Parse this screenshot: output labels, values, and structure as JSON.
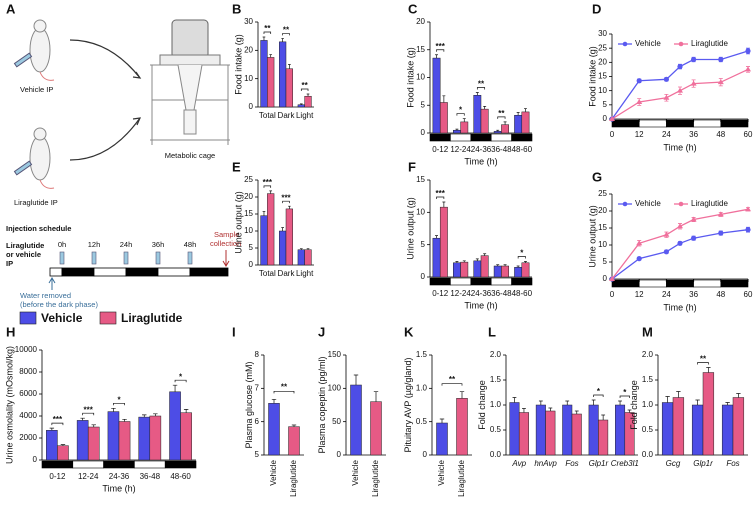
{
  "diagram": {
    "panel": "A",
    "vehicle_label": "Vehicle IP",
    "liraglutide_label": "Liraglutide IP",
    "cage_label": "Metabolic cage",
    "schedule_title": "Injection schedule",
    "injection_label": [
      "Liraglutide",
      "or vehicle",
      "IP"
    ],
    "times": [
      "0h",
      "12h",
      "24h",
      "36h",
      "48h"
    ],
    "sample_label": [
      "Sample",
      "collection"
    ],
    "water_label": [
      "Water removed",
      "(before the dark phase)"
    ]
  },
  "legend": [
    {
      "name": "Vehicle",
      "color": "#4d4de6"
    },
    {
      "name": "Liraglutide",
      "color": "#e65a85"
    }
  ],
  "chart_data": [
    {
      "panel": "B",
      "type": "bar",
      "y_label": "Food intake (g)",
      "categories": [
        "Total",
        "Dark",
        "Light"
      ],
      "series": [
        {
          "color": "#4d4de6",
          "values": [
            23.5,
            23,
            0.8
          ],
          "errors": [
            1.2,
            1.2,
            0.3
          ]
        },
        {
          "color": "#e65a85",
          "values": [
            17.5,
            13.5,
            3.8
          ],
          "errors": [
            1,
            1.5,
            0.8
          ]
        }
      ],
      "significance": [
        "**",
        "**",
        "**"
      ],
      "ylim": [
        0,
        30
      ],
      "yticks": [
        0,
        10,
        20,
        30
      ]
    },
    {
      "panel": "C",
      "type": "bar",
      "y_label": "Food intake (g)",
      "x_label": "Time (h)",
      "light_dark_bar": true,
      "categories": [
        "0-12",
        "12-24",
        "24-36",
        "36-48",
        "48-60"
      ],
      "series": [
        {
          "color": "#4d4de6",
          "values": [
            13.5,
            0.5,
            6.8,
            0.3,
            3.2
          ],
          "errors": [
            0.6,
            0.2,
            0.5,
            0.2,
            0.5
          ]
        },
        {
          "color": "#e65a85",
          "values": [
            5.5,
            2,
            4.3,
            1.5,
            3.8
          ],
          "errors": [
            1.2,
            0.6,
            0.5,
            0.5,
            0.6
          ]
        }
      ],
      "significance": [
        "***",
        "*",
        "**",
        "**",
        null
      ],
      "ylim": [
        0,
        20
      ],
      "yticks": [
        0,
        5,
        10,
        15,
        20
      ]
    },
    {
      "panel": "D",
      "type": "line",
      "y_label": "Food intake (g)",
      "x_label": "Time (h)",
      "light_dark_bar": true,
      "x": [
        0,
        12,
        24,
        30,
        36,
        48,
        60
      ],
      "series": [
        {
          "name": "Vehicle",
          "color": "#5a5af0",
          "values": [
            0,
            13.5,
            14,
            18.5,
            21,
            21,
            24
          ],
          "errors": [
            0,
            0.6,
            0.6,
            0.8,
            0.8,
            0.8,
            1
          ]
        },
        {
          "name": "Liraglutide",
          "color": "#f0709c",
          "values": [
            0,
            6,
            7.5,
            10,
            12.5,
            13,
            17.5
          ],
          "errors": [
            0,
            1.2,
            1.2,
            1.3,
            1.3,
            1.3,
            1
          ]
        }
      ],
      "xlim": [
        0,
        60
      ],
      "xticks": [
        0,
        12,
        24,
        36,
        48,
        60
      ],
      "ylim": [
        0,
        30
      ],
      "yticks": [
        0,
        5,
        10,
        15,
        20,
        25,
        30
      ]
    },
    {
      "panel": "E",
      "type": "bar",
      "y_label": "Urine output (g)",
      "categories": [
        "Total",
        "Dark",
        "Light"
      ],
      "series": [
        {
          "color": "#4d4de6",
          "values": [
            14.5,
            10,
            4.5
          ],
          "errors": [
            1.2,
            1,
            0.3
          ]
        },
        {
          "color": "#e65a85",
          "values": [
            21,
            16.5,
            4.5
          ],
          "errors": [
            0.8,
            0.8,
            0.3
          ]
        }
      ],
      "significance": [
        "***",
        "***",
        null
      ],
      "ylim": [
        0,
        25
      ],
      "yticks": [
        0,
        5,
        10,
        15,
        20,
        25
      ]
    },
    {
      "panel": "F",
      "type": "bar",
      "y_label": "Urine output (g)",
      "x_label": "Time (h)",
      "light_dark_bar": true,
      "categories": [
        "0-12",
        "12-24",
        "24-36",
        "36-48",
        "48-60"
      ],
      "series": [
        {
          "color": "#4d4de6",
          "values": [
            6,
            2.2,
            2.5,
            1.7,
            1.5
          ],
          "errors": [
            0.4,
            0.2,
            0.3,
            0.2,
            0.2
          ]
        },
        {
          "color": "#e65a85",
          "values": [
            10.8,
            2.3,
            3.3,
            1.7,
            2.2
          ],
          "errors": [
            0.8,
            0.2,
            0.3,
            0.2,
            0.2
          ]
        }
      ],
      "significance": [
        "***",
        null,
        null,
        null,
        "*"
      ],
      "ylim": [
        0,
        15
      ],
      "yticks": [
        0,
        5,
        10,
        15
      ]
    },
    {
      "panel": "G",
      "type": "line",
      "y_label": "Urine output (g)",
      "x_label": "Time (h)",
      "light_dark_bar": true,
      "x": [
        0,
        12,
        24,
        30,
        36,
        48,
        60
      ],
      "series": [
        {
          "name": "Vehicle",
          "color": "#5a5af0",
          "values": [
            0,
            6,
            8,
            10.5,
            12,
            13.5,
            14.5
          ],
          "errors": [
            0,
            0.4,
            0.5,
            0.5,
            0.6,
            0.6,
            0.7
          ]
        },
        {
          "name": "Liraglutide",
          "color": "#f0709c",
          "values": [
            0,
            10.5,
            13,
            15.5,
            17.5,
            19,
            20.5
          ],
          "errors": [
            0,
            0.8,
            0.8,
            0.8,
            0.6,
            0.6,
            0.5
          ]
        }
      ],
      "xlim": [
        0,
        60
      ],
      "xticks": [
        0,
        12,
        24,
        36,
        48,
        60
      ],
      "ylim": [
        0,
        25
      ],
      "yticks": [
        0,
        5,
        10,
        15,
        20,
        25
      ]
    },
    {
      "panel": "H",
      "type": "bar",
      "y_label": "Urine osmolality (mOsmol/kg)",
      "x_label": "Time (h)",
      "light_dark_bar": true,
      "categories": [
        "0-12",
        "12-24",
        "24-36",
        "36-48",
        "48-60"
      ],
      "series": [
        {
          "color": "#4d4de6",
          "values": [
            2700,
            3600,
            4400,
            3900,
            6200
          ],
          "errors": [
            200,
            200,
            300,
            200,
            600
          ]
        },
        {
          "color": "#e65a85",
          "values": [
            1300,
            3000,
            3500,
            4000,
            4300
          ],
          "errors": [
            100,
            200,
            200,
            200,
            300
          ]
        }
      ],
      "significance": [
        "***",
        "***",
        "*",
        null,
        "*"
      ],
      "ylim": [
        0,
        10000
      ],
      "yticks": [
        0,
        2000,
        4000,
        6000,
        8000,
        10000
      ]
    },
    {
      "panel": "I",
      "type": "bar",
      "y_label": "Plasma glucose (mM)",
      "rotate_categories": true,
      "categories": [
        "Vehicle",
        "Liraglutide"
      ],
      "values": [
        6.55,
        5.85
      ],
      "errors": [
        0.12,
        0.05
      ],
      "colors": [
        "#4d4de6",
        "#e65a85"
      ],
      "significance": "**",
      "ylim": [
        5,
        8
      ],
      "yticks": [
        5,
        6,
        7,
        8
      ]
    },
    {
      "panel": "J",
      "type": "bar",
      "y_label": "Plasma copeptin (pg/ml)",
      "rotate_categories": true,
      "categories": [
        "Vehicle",
        "Liraglutide"
      ],
      "values": [
        105,
        80
      ],
      "errors": [
        15,
        15
      ],
      "colors": [
        "#4d4de6",
        "#e65a85"
      ],
      "ylim": [
        0,
        150
      ],
      "yticks": [
        0,
        50,
        100,
        150
      ]
    },
    {
      "panel": "K",
      "type": "bar",
      "y_label": "Pituitary AVP (µg/gland)",
      "rotate_categories": true,
      "categories": [
        "Vehicle",
        "Liraglutide"
      ],
      "values": [
        0.48,
        0.85
      ],
      "errors": [
        0.06,
        0.1
      ],
      "colors": [
        "#4d4de6",
        "#e65a85"
      ],
      "significance": "**",
      "ylim": [
        0,
        1.5
      ],
      "yticks": [
        0,
        0.5,
        {
          "value": 1,
          "label": "1.0"
        },
        1.5
      ]
    },
    {
      "panel": "L",
      "type": "bar",
      "y_label": "Fold change",
      "italic_categories": true,
      "categories": [
        "Avp",
        "hnAvp",
        "Fos",
        "Glp1r",
        "Creb3l1"
      ],
      "series": [
        {
          "color": "#4d4de6",
          "values": [
            1.05,
            1,
            1,
            1,
            1
          ],
          "errors": [
            0.1,
            0.08,
            0.08,
            0.1,
            0.08
          ]
        },
        {
          "color": "#e65a85",
          "values": [
            0.85,
            0.88,
            0.82,
            0.7,
            0.85
          ],
          "errors": [
            0.08,
            0.06,
            0.06,
            0.1,
            0.05
          ]
        }
      ],
      "significance": [
        null,
        null,
        null,
        "*",
        "*"
      ],
      "ylim": [
        0,
        2
      ],
      "yticks": [
        {
          "value": 0,
          "label": "0.0"
        },
        0.5,
        {
          "value": 1,
          "label": "1.0"
        },
        1.5,
        {
          "value": 2,
          "label": "2.0"
        }
      ]
    },
    {
      "panel": "M",
      "type": "bar",
      "y_label": "Fold change",
      "italic_categories": true,
      "categories": [
        "Gcg",
        "Glp1r",
        "Fos"
      ],
      "series": [
        {
          "color": "#4d4de6",
          "values": [
            1.05,
            1,
            1
          ],
          "errors": [
            0.12,
            0.1,
            0.05
          ]
        },
        {
          "color": "#e65a85",
          "values": [
            1.15,
            1.65,
            1.15
          ],
          "errors": [
            0.12,
            0.1,
            0.08
          ]
        }
      ],
      "significance": [
        null,
        "**",
        null
      ],
      "ylim": [
        0,
        2
      ],
      "yticks": [
        {
          "value": 0,
          "label": "0.0"
        },
        0.5,
        {
          "value": 1,
          "label": "1.0"
        },
        1.5,
        {
          "value": 2,
          "label": "2.0"
        }
      ]
    }
  ]
}
